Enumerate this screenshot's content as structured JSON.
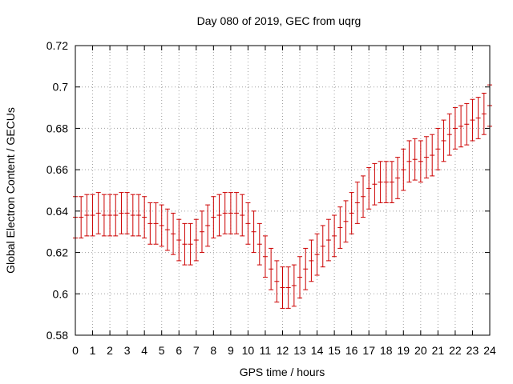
{
  "chart_data": {
    "type": "line",
    "title": "Day 080 of 2019, GEC from uqrg",
    "xlabel": "GPS time / hours",
    "ylabel": "Global Electron Content / GECUs",
    "xlim": [
      0,
      24
    ],
    "ylim": [
      0.58,
      0.72
    ],
    "xticks": [
      "0",
      "1",
      "2",
      "3",
      "4",
      "5",
      "6",
      "7",
      "8",
      "9",
      "10",
      "11",
      "12",
      "13",
      "14",
      "15",
      "16",
      "17",
      "18",
      "19",
      "20",
      "21",
      "22",
      "23",
      "24"
    ],
    "yticks": [
      "0.58",
      "0.6",
      "0.62",
      "0.64",
      "0.66",
      "0.68",
      "0.7",
      "0.72"
    ],
    "grid": true,
    "legend": "none",
    "color": "#cc0000",
    "error_bar_halfwidth": 0.01,
    "series": [
      {
        "x": [
          0,
          0.333,
          0.667,
          1,
          1.333,
          1.667,
          2,
          2.333,
          2.667,
          3,
          3.333,
          3.667,
          4,
          4.333,
          4.667,
          5,
          5.333,
          5.667,
          6,
          6.333,
          6.667,
          7,
          7.333,
          7.667,
          8,
          8.333,
          8.667,
          9,
          9.333,
          9.667,
          10,
          10.333,
          10.667,
          11,
          11.333,
          11.667,
          12,
          12.333,
          12.667,
          13,
          13.333,
          13.667,
          14,
          14.333,
          14.667,
          15,
          15.333,
          15.667,
          16,
          16.333,
          16.667,
          17,
          17.333,
          17.667,
          18,
          18.333,
          18.667,
          19,
          19.333,
          19.667,
          20,
          20.333,
          20.667,
          21,
          21.333,
          21.667,
          22,
          22.333,
          22.667,
          23,
          23.333,
          23.667,
          24
        ],
        "y": [
          0.637,
          0.637,
          0.638,
          0.638,
          0.639,
          0.638,
          0.638,
          0.638,
          0.639,
          0.639,
          0.638,
          0.638,
          0.637,
          0.634,
          0.634,
          0.633,
          0.631,
          0.629,
          0.626,
          0.624,
          0.624,
          0.626,
          0.63,
          0.633,
          0.637,
          0.638,
          0.639,
          0.639,
          0.639,
          0.638,
          0.634,
          0.63,
          0.624,
          0.618,
          0.612,
          0.606,
          0.603,
          0.603,
          0.604,
          0.608,
          0.612,
          0.616,
          0.619,
          0.623,
          0.626,
          0.628,
          0.632,
          0.635,
          0.639,
          0.644,
          0.647,
          0.651,
          0.653,
          0.654,
          0.654,
          0.654,
          0.656,
          0.66,
          0.664,
          0.665,
          0.664,
          0.666,
          0.667,
          0.67,
          0.674,
          0.677,
          0.68,
          0.681,
          0.682,
          0.684,
          0.685,
          0.687,
          0.691
        ]
      }
    ]
  }
}
